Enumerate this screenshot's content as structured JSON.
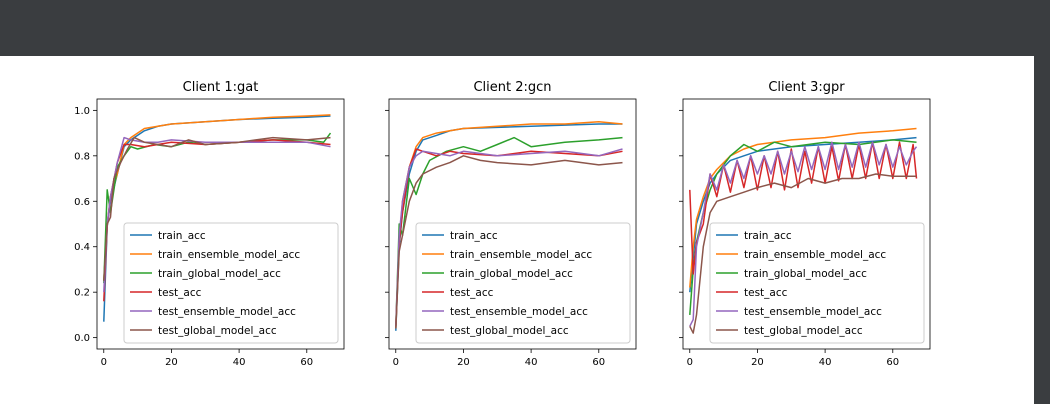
{
  "colors": {
    "topbar": "#3a3d40",
    "train_acc": "#1f77b4",
    "train_ensemble_model_acc": "#ff7f0e",
    "train_global_model_acc": "#2ca02c",
    "test_acc": "#d62728",
    "test_ensemble_model_acc": "#9467bd",
    "test_global_model_acc": "#8c564b"
  },
  "chart_data": [
    {
      "type": "line",
      "title": "Client 1:gat",
      "xlim": [
        -2,
        71
      ],
      "ylim": [
        -0.05,
        1.05
      ],
      "xticks": [
        0,
        20,
        40,
        60
      ],
      "yticks": [
        0.0,
        0.2,
        0.4,
        0.6,
        0.8,
        1.0
      ],
      "ytick_labels": [
        "0.0",
        "0.2",
        "0.4",
        "0.6",
        "0.8",
        "1.0"
      ],
      "show_ytick_labels": true,
      "legend": "lower-right",
      "series": [
        {
          "name": "train_acc",
          "x": [
            0,
            1,
            2,
            4,
            6,
            8,
            12,
            16,
            20,
            30,
            40,
            50,
            60,
            67
          ],
          "y": [
            0.07,
            0.49,
            0.6,
            0.72,
            0.84,
            0.87,
            0.91,
            0.93,
            0.94,
            0.95,
            0.96,
            0.965,
            0.97,
            0.975
          ]
        },
        {
          "name": "train_ensemble_model_acc",
          "x": [
            0,
            1,
            2,
            4,
            6,
            8,
            12,
            16,
            20,
            30,
            40,
            50,
            60,
            67
          ],
          "y": [
            0.25,
            0.5,
            0.62,
            0.72,
            0.85,
            0.88,
            0.92,
            0.93,
            0.94,
            0.95,
            0.96,
            0.97,
            0.975,
            0.98
          ]
        },
        {
          "name": "train_global_model_acc",
          "x": [
            0,
            1,
            2,
            4,
            6,
            8,
            10,
            15,
            20,
            25,
            30,
            40,
            50,
            60,
            65,
            67
          ],
          "y": [
            0.24,
            0.65,
            0.55,
            0.75,
            0.8,
            0.84,
            0.83,
            0.85,
            0.84,
            0.86,
            0.85,
            0.86,
            0.87,
            0.87,
            0.86,
            0.9
          ]
        },
        {
          "name": "test_acc",
          "x": [
            0,
            1,
            2,
            4,
            6,
            8,
            12,
            16,
            20,
            30,
            40,
            50,
            60,
            67
          ],
          "y": [
            0.16,
            0.49,
            0.62,
            0.77,
            0.85,
            0.85,
            0.84,
            0.85,
            0.86,
            0.85,
            0.86,
            0.87,
            0.86,
            0.85
          ]
        },
        {
          "name": "test_ensemble_model_acc",
          "x": [
            0,
            1,
            2,
            4,
            6,
            8,
            12,
            16,
            20,
            30,
            40,
            50,
            60,
            67
          ],
          "y": [
            0.2,
            0.5,
            0.62,
            0.77,
            0.88,
            0.87,
            0.86,
            0.86,
            0.87,
            0.86,
            0.86,
            0.86,
            0.86,
            0.84
          ]
        },
        {
          "name": "test_global_model_acc",
          "x": [
            0,
            1,
            2,
            3,
            5,
            7,
            9,
            12,
            16,
            20,
            25,
            30,
            40,
            50,
            60,
            67
          ],
          "y": [
            0.25,
            0.5,
            0.53,
            0.7,
            0.77,
            0.83,
            0.88,
            0.86,
            0.85,
            0.84,
            0.87,
            0.85,
            0.86,
            0.88,
            0.87,
            0.88
          ]
        }
      ]
    },
    {
      "type": "line",
      "title": "Client 2:gcn",
      "xlim": [
        -2,
        71
      ],
      "ylim": [
        -0.05,
        1.05
      ],
      "xticks": [
        0,
        20,
        40,
        60
      ],
      "yticks": [
        0.0,
        0.2,
        0.4,
        0.6,
        0.8,
        1.0
      ],
      "show_ytick_labels": false,
      "legend": "lower-right",
      "series": [
        {
          "name": "train_acc",
          "x": [
            0,
            1,
            2,
            4,
            6,
            8,
            12,
            16,
            20,
            30,
            40,
            50,
            60,
            67
          ],
          "y": [
            0.03,
            0.4,
            0.55,
            0.72,
            0.82,
            0.87,
            0.89,
            0.91,
            0.92,
            0.925,
            0.93,
            0.935,
            0.94,
            0.94
          ]
        },
        {
          "name": "train_ensemble_model_acc",
          "x": [
            0,
            1,
            2,
            4,
            6,
            8,
            12,
            16,
            20,
            30,
            40,
            50,
            60,
            67
          ],
          "y": [
            0.04,
            0.42,
            0.6,
            0.75,
            0.84,
            0.88,
            0.9,
            0.91,
            0.92,
            0.93,
            0.94,
            0.94,
            0.95,
            0.94
          ]
        },
        {
          "name": "train_global_model_acc",
          "x": [
            0,
            1,
            2,
            4,
            6,
            8,
            10,
            15,
            20,
            25,
            30,
            35,
            40,
            50,
            60,
            67
          ],
          "y": [
            0.05,
            0.5,
            0.45,
            0.7,
            0.63,
            0.72,
            0.78,
            0.82,
            0.84,
            0.82,
            0.85,
            0.88,
            0.84,
            0.86,
            0.87,
            0.88
          ]
        },
        {
          "name": "test_acc",
          "x": [
            0,
            1,
            2,
            4,
            6,
            8,
            12,
            16,
            20,
            30,
            40,
            50,
            60,
            67
          ],
          "y": [
            0.05,
            0.42,
            0.55,
            0.75,
            0.83,
            0.82,
            0.8,
            0.82,
            0.81,
            0.8,
            0.82,
            0.81,
            0.8,
            0.82
          ]
        },
        {
          "name": "test_ensemble_model_acc",
          "x": [
            0,
            1,
            2,
            4,
            6,
            8,
            12,
            16,
            20,
            30,
            40,
            50,
            60,
            67
          ],
          "y": [
            0.05,
            0.45,
            0.6,
            0.75,
            0.8,
            0.82,
            0.81,
            0.8,
            0.82,
            0.8,
            0.81,
            0.82,
            0.8,
            0.83
          ]
        },
        {
          "name": "test_global_model_acc",
          "x": [
            0,
            1,
            2,
            4,
            6,
            8,
            12,
            16,
            20,
            25,
            30,
            40,
            50,
            60,
            67
          ],
          "y": [
            0.04,
            0.38,
            0.45,
            0.6,
            0.68,
            0.72,
            0.75,
            0.77,
            0.8,
            0.78,
            0.77,
            0.76,
            0.78,
            0.76,
            0.77
          ]
        }
      ]
    },
    {
      "type": "line",
      "title": "Client 3:gpr",
      "xlim": [
        -2,
        71
      ],
      "ylim": [
        -0.05,
        1.05
      ],
      "xticks": [
        0,
        20,
        40,
        60
      ],
      "yticks": [
        0.0,
        0.2,
        0.4,
        0.6,
        0.8,
        1.0
      ],
      "show_ytick_labels": false,
      "legend": "lower-right",
      "series": [
        {
          "name": "train_acc",
          "x": [
            0,
            1,
            2,
            4,
            6,
            8,
            12,
            16,
            20,
            30,
            40,
            50,
            60,
            67
          ],
          "y": [
            0.2,
            0.35,
            0.5,
            0.6,
            0.68,
            0.72,
            0.78,
            0.8,
            0.82,
            0.84,
            0.85,
            0.86,
            0.87,
            0.88
          ]
        },
        {
          "name": "train_ensemble_model_acc",
          "x": [
            0,
            1,
            2,
            4,
            6,
            8,
            12,
            16,
            20,
            30,
            40,
            50,
            60,
            67
          ],
          "y": [
            0.22,
            0.4,
            0.52,
            0.62,
            0.7,
            0.74,
            0.8,
            0.83,
            0.85,
            0.87,
            0.88,
            0.9,
            0.91,
            0.92
          ]
        },
        {
          "name": "train_global_model_acc",
          "x": [
            0,
            1,
            2,
            4,
            6,
            8,
            12,
            16,
            20,
            25,
            30,
            40,
            50,
            60,
            67
          ],
          "y": [
            0.1,
            0.3,
            0.42,
            0.55,
            0.65,
            0.72,
            0.8,
            0.85,
            0.82,
            0.86,
            0.84,
            0.86,
            0.85,
            0.87,
            0.86
          ]
        },
        {
          "name": "test_acc",
          "x": [
            0,
            1,
            2,
            4,
            6,
            8,
            10,
            12,
            14,
            16,
            18,
            20,
            22,
            24,
            26,
            28,
            30,
            32,
            34,
            36,
            38,
            40,
            42,
            44,
            46,
            48,
            50,
            52,
            54,
            56,
            58,
            60,
            62,
            64,
            66,
            67
          ],
          "y": [
            0.65,
            0.28,
            0.42,
            0.5,
            0.72,
            0.62,
            0.76,
            0.64,
            0.78,
            0.66,
            0.8,
            0.65,
            0.8,
            0.66,
            0.82,
            0.65,
            0.83,
            0.66,
            0.82,
            0.68,
            0.84,
            0.68,
            0.84,
            0.69,
            0.85,
            0.7,
            0.85,
            0.7,
            0.86,
            0.7,
            0.85,
            0.7,
            0.86,
            0.7,
            0.85,
            0.7
          ]
        },
        {
          "name": "test_ensemble_model_acc",
          "x": [
            0,
            1,
            2,
            4,
            6,
            8,
            10,
            12,
            14,
            16,
            18,
            20,
            22,
            24,
            26,
            28,
            30,
            32,
            34,
            36,
            38,
            40,
            42,
            44,
            46,
            48,
            50,
            52,
            54,
            56,
            58,
            60,
            62,
            64,
            66,
            67
          ],
          "y": [
            0.05,
            0.08,
            0.4,
            0.55,
            0.72,
            0.65,
            0.76,
            0.68,
            0.78,
            0.7,
            0.8,
            0.72,
            0.8,
            0.72,
            0.82,
            0.72,
            0.82,
            0.73,
            0.84,
            0.74,
            0.84,
            0.74,
            0.86,
            0.74,
            0.85,
            0.75,
            0.86,
            0.75,
            0.86,
            0.76,
            0.85,
            0.75,
            0.84,
            0.76,
            0.82,
            0.84
          ]
        },
        {
          "name": "test_global_model_acc",
          "x": [
            0,
            1,
            2,
            4,
            6,
            8,
            12,
            16,
            20,
            25,
            30,
            35,
            40,
            45,
            50,
            55,
            60,
            65,
            67
          ],
          "y": [
            0.05,
            0.02,
            0.1,
            0.4,
            0.55,
            0.6,
            0.62,
            0.64,
            0.66,
            0.68,
            0.66,
            0.7,
            0.68,
            0.7,
            0.7,
            0.72,
            0.71,
            0.71,
            0.71
          ]
        }
      ]
    }
  ]
}
